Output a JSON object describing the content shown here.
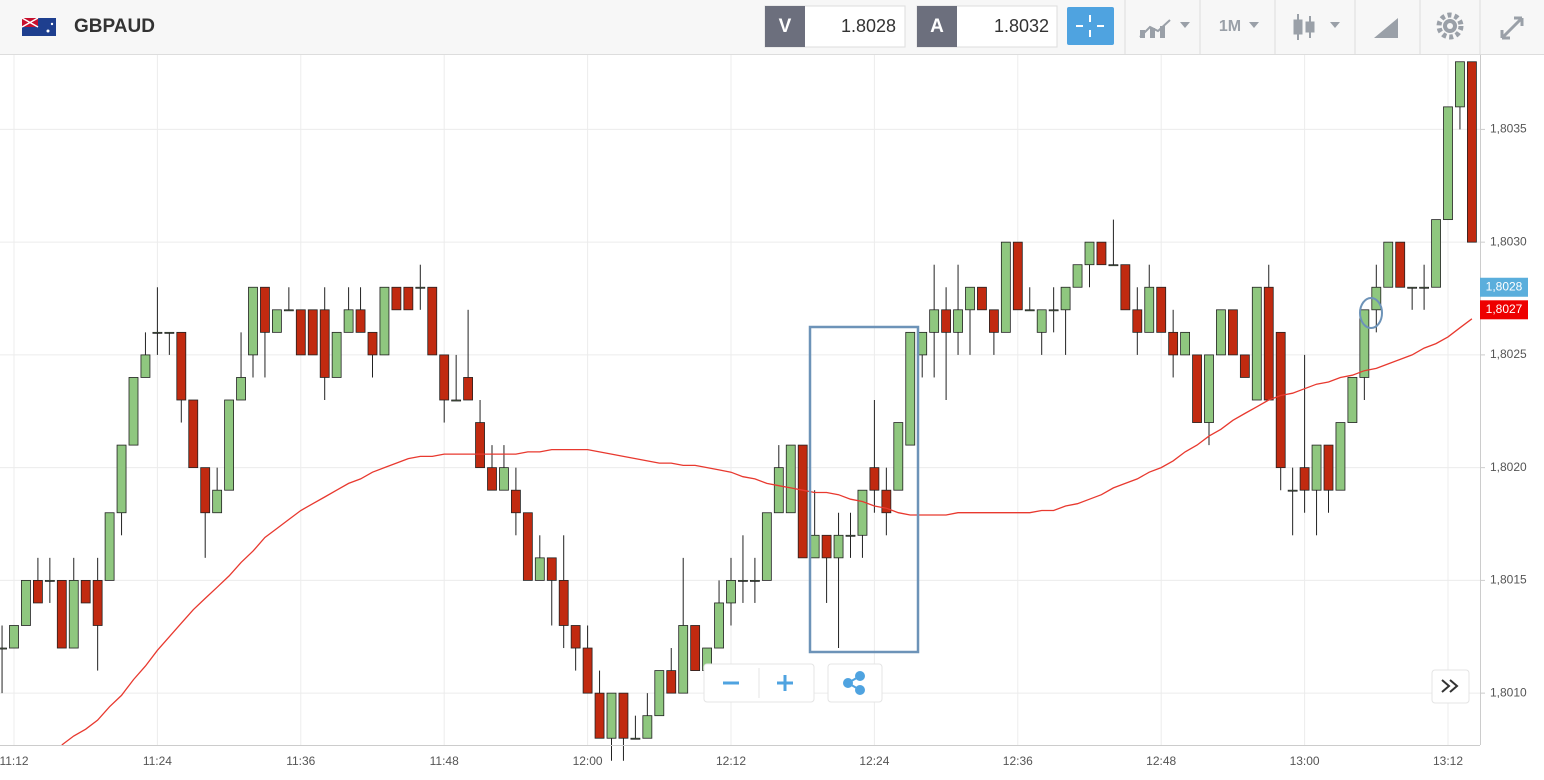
{
  "header": {
    "symbol": "GBPAUD",
    "sell_label": "V",
    "sell": "1.8028",
    "buy_label": "A",
    "buy": "1.8032",
    "timeframe": "1M"
  },
  "chart_data": {
    "type": "candlestick",
    "categories": [
      null,
      "11:12",
      null,
      null,
      null,
      null,
      null,
      null,
      null,
      null,
      null,
      null,
      null,
      "11:24",
      null,
      null,
      null,
      null,
      null,
      null,
      null,
      null,
      null,
      null,
      null,
      "11:36",
      null,
      null,
      null,
      null,
      null,
      null,
      null,
      null,
      null,
      null,
      null,
      "11:48",
      null,
      null,
      null,
      null,
      null,
      null,
      null,
      null,
      null,
      null,
      null,
      "12:00",
      null,
      null,
      null,
      null,
      null,
      null,
      null,
      null,
      null,
      null,
      null,
      "12:12",
      null,
      null,
      null,
      null,
      null,
      null,
      null,
      null,
      null,
      null,
      null,
      "12:24",
      null,
      null,
      null,
      null,
      null,
      null,
      null,
      null,
      null,
      null,
      null,
      "12:36",
      null,
      null,
      null,
      null,
      null,
      null,
      null,
      null,
      null,
      null,
      null,
      "12:48",
      null,
      null,
      null,
      null,
      null,
      null,
      null,
      null,
      null,
      null,
      null,
      "13:00",
      null,
      null,
      null,
      null,
      null,
      null,
      null,
      null,
      null,
      null,
      null,
      "13:12",
      null,
      null
    ],
    "open": [
      1.8012,
      1.8012,
      1.8013,
      1.8015,
      1.8015,
      1.8015,
      1.8012,
      1.8015,
      1.8015,
      1.8015,
      1.8018,
      1.8021,
      1.8024,
      1.8026,
      1.8026,
      1.8026,
      1.8023,
      1.802,
      1.8018,
      1.8019,
      1.8023,
      1.8025,
      1.8028,
      1.8026,
      1.8027,
      1.8027,
      1.8027,
      1.8027,
      1.8024,
      1.8026,
      1.8027,
      1.8026,
      1.8025,
      1.8028,
      1.8028,
      1.8028,
      1.8028,
      1.8025,
      1.8023,
      1.8024,
      1.8022,
      1.802,
      1.8019,
      1.8019,
      1.8018,
      1.8015,
      1.8016,
      1.8015,
      1.8013,
      1.8012,
      1.801,
      1.8008,
      1.801,
      1.8008,
      1.8008,
      1.8009,
      1.8011,
      1.801,
      1.8013,
      1.8011,
      1.8012,
      1.8014,
      1.8015,
      1.8015,
      1.8015,
      1.8018,
      1.8018,
      1.8021,
      1.8016,
      1.8017,
      1.8016,
      1.8017,
      1.8017,
      1.802,
      1.8019,
      1.8019,
      1.8021,
      1.8025,
      1.8026,
      1.8027,
      1.8026,
      1.8027,
      1.8028,
      1.8027,
      1.8026,
      1.803,
      1.8027,
      1.8026,
      1.8027,
      1.8027,
      1.8028,
      1.8029,
      1.803,
      1.8029,
      1.8029,
      1.8027,
      1.8026,
      1.8028,
      1.8026,
      1.8025,
      1.8025,
      1.8022,
      1.8025,
      1.8027,
      1.8025,
      1.8023,
      1.8028,
      1.8026,
      1.8019,
      1.802,
      1.8019,
      1.8021,
      1.8019,
      1.8022,
      1.8024,
      1.8027,
      1.8028,
      1.803,
      1.8028,
      1.8028,
      1.8028,
      1.8031,
      1.8036,
      1.8038
    ],
    "high": [
      1.8013,
      1.8013,
      1.8015,
      1.8016,
      1.8016,
      1.8015,
      1.8016,
      1.8015,
      1.8016,
      1.8018,
      1.8021,
      1.8024,
      1.8026,
      1.8028,
      1.8026,
      1.8026,
      1.8023,
      1.802,
      1.802,
      1.8023,
      1.8026,
      1.8028,
      1.8028,
      1.8027,
      1.8028,
      1.8027,
      1.8027,
      1.8028,
      1.8026,
      1.8028,
      1.8028,
      1.8026,
      1.8028,
      1.8028,
      1.8028,
      1.8029,
      1.8028,
      1.8025,
      1.8025,
      1.8027,
      1.8023,
      1.8021,
      1.8021,
      1.802,
      1.8018,
      1.8017,
      1.8016,
      1.8017,
      1.8013,
      1.8013,
      1.8011,
      1.801,
      1.801,
      1.8009,
      1.801,
      1.8011,
      1.8012,
      1.8016,
      1.8013,
      1.8012,
      1.8015,
      1.8016,
      1.8017,
      1.8016,
      1.8018,
      1.8021,
      1.8021,
      1.8021,
      1.8019,
      1.8017,
      1.8018,
      1.8018,
      1.8019,
      1.8023,
      1.802,
      1.8022,
      1.8026,
      1.8026,
      1.8029,
      1.8028,
      1.8029,
      1.8028,
      1.8028,
      1.8027,
      1.803,
      1.803,
      1.8028,
      1.8027,
      1.8028,
      1.8028,
      1.8029,
      1.803,
      1.803,
      1.8031,
      1.8029,
      1.8028,
      1.8029,
      1.8028,
      1.8027,
      1.8026,
      1.8025,
      1.8025,
      1.8027,
      1.8027,
      1.8025,
      1.8028,
      1.8029,
      1.8026,
      1.802,
      1.8025,
      1.8021,
      1.8021,
      1.8022,
      1.8024,
      1.8027,
      1.8029,
      1.803,
      1.803,
      1.8028,
      1.8029,
      1.8031,
      1.8036,
      1.8038,
      1.8038
    ],
    "low": [
      1.801,
      1.8012,
      1.8013,
      1.8014,
      1.8014,
      1.8012,
      1.8012,
      1.8014,
      1.8011,
      1.8015,
      1.8017,
      1.8021,
      1.8024,
      1.8025,
      1.8025,
      1.8022,
      1.802,
      1.8016,
      1.8018,
      1.8019,
      1.8023,
      1.8024,
      1.8024,
      1.8026,
      1.8027,
      1.8025,
      1.8025,
      1.8023,
      1.8024,
      1.8026,
      1.8026,
      1.8024,
      1.8025,
      1.8027,
      1.8027,
      1.8027,
      1.8025,
      1.8022,
      1.8023,
      1.8023,
      1.802,
      1.8019,
      1.8019,
      1.8017,
      1.8015,
      1.8015,
      1.8013,
      1.8012,
      1.8011,
      1.801,
      1.8008,
      1.8007,
      1.8007,
      1.8008,
      1.8008,
      1.8009,
      1.801,
      1.801,
      1.8011,
      1.8011,
      1.8012,
      1.8013,
      1.8014,
      1.8014,
      1.8015,
      1.8018,
      1.8018,
      1.8016,
      1.8016,
      1.8014,
      1.8012,
      1.8016,
      1.8016,
      1.8018,
      1.8017,
      1.8019,
      1.8021,
      1.8024,
      1.8024,
      1.8023,
      1.8025,
      1.8025,
      1.8027,
      1.8025,
      1.8026,
      1.8027,
      1.8027,
      1.8025,
      1.8026,
      1.8025,
      1.8028,
      1.8028,
      1.8029,
      1.8029,
      1.8027,
      1.8025,
      1.8026,
      1.8026,
      1.8024,
      1.8025,
      1.8022,
      1.8021,
      1.8025,
      1.8025,
      1.8024,
      1.8023,
      1.8023,
      1.8019,
      1.8017,
      1.8018,
      1.8017,
      1.8018,
      1.8019,
      1.8022,
      1.8023,
      1.8026,
      1.8028,
      1.8028,
      1.8027,
      1.8027,
      1.8028,
      1.8031,
      1.8035,
      1.803
    ],
    "close": [
      1.8012,
      1.8013,
      1.8015,
      1.8014,
      1.8015,
      1.8012,
      1.8015,
      1.8014,
      1.8013,
      1.8018,
      1.8021,
      1.8024,
      1.8025,
      1.8026,
      1.8026,
      1.8023,
      1.802,
      1.8018,
      1.8019,
      1.8023,
      1.8024,
      1.8028,
      1.8026,
      1.8027,
      1.8027,
      1.8025,
      1.8025,
      1.8024,
      1.8026,
      1.8027,
      1.8026,
      1.8025,
      1.8028,
      1.8027,
      1.8027,
      1.8028,
      1.8025,
      1.8023,
      1.8023,
      1.8023,
      1.802,
      1.8019,
      1.802,
      1.8018,
      1.8015,
      1.8016,
      1.8015,
      1.8013,
      1.8012,
      1.801,
      1.8008,
      1.801,
      1.8008,
      1.8008,
      1.8009,
      1.8011,
      1.801,
      1.8013,
      1.8011,
      1.8012,
      1.8014,
      1.8015,
      1.8015,
      1.8015,
      1.8018,
      1.802,
      1.8021,
      1.8016,
      1.8017,
      1.8016,
      1.8017,
      1.8017,
      1.8019,
      1.8019,
      1.8018,
      1.8022,
      1.8026,
      1.8026,
      1.8027,
      1.8026,
      1.8027,
      1.8028,
      1.8027,
      1.8026,
      1.803,
      1.8027,
      1.8027,
      1.8027,
      1.8027,
      1.8028,
      1.8029,
      1.803,
      1.8029,
      1.8029,
      1.8027,
      1.8026,
      1.8028,
      1.8026,
      1.8025,
      1.8026,
      1.8022,
      1.8025,
      1.8027,
      1.8025,
      1.8024,
      1.8028,
      1.8023,
      1.802,
      1.8019,
      1.8019,
      1.8021,
      1.8019,
      1.8022,
      1.8024,
      1.8027,
      1.8028,
      1.803,
      1.8028,
      1.8028,
      1.8028,
      1.8031,
      1.8036,
      1.8038,
      1.803
    ],
    "up_color": "#8fc77f",
    "down_color": "#c12a10",
    "moving_average": {
      "color": "#e8392f",
      "values": [
        null,
        null,
        null,
        null,
        null,
        1.80077,
        1.80081,
        1.80084,
        1.80088,
        1.80094,
        1.80099,
        1.80106,
        1.80112,
        1.80119,
        1.80125,
        1.80131,
        1.80137,
        1.80142,
        1.80147,
        1.80152,
        1.80158,
        1.80163,
        1.80169,
        1.80173,
        1.80177,
        1.80181,
        1.80184,
        1.80187,
        1.8019,
        1.80193,
        1.80195,
        1.80198,
        1.802,
        1.80202,
        1.80204,
        1.80205,
        1.80205,
        1.80206,
        1.80206,
        1.80206,
        1.80206,
        1.80206,
        1.80206,
        1.80206,
        1.80207,
        1.80207,
        1.80208,
        1.80208,
        1.80208,
        1.80208,
        1.80207,
        1.80206,
        1.80205,
        1.80204,
        1.80203,
        1.80202,
        1.80202,
        1.80201,
        1.80201,
        1.802,
        1.80199,
        1.80198,
        1.80196,
        1.80195,
        1.80193,
        1.80192,
        1.80191,
        1.8019,
        1.80189,
        1.80189,
        1.80188,
        1.80186,
        1.80185,
        1.80183,
        1.80182,
        1.8018,
        1.80179,
        1.80179,
        1.80179,
        1.80179,
        1.8018,
        1.8018,
        1.8018,
        1.8018,
        1.8018,
        1.8018,
        1.8018,
        1.80181,
        1.80181,
        1.80183,
        1.80184,
        1.80186,
        1.80188,
        1.80191,
        1.80193,
        1.80195,
        1.80198,
        1.802,
        1.80203,
        1.80207,
        1.8021,
        1.80214,
        1.80217,
        1.80221,
        1.80224,
        1.80227,
        1.8023,
        1.80232,
        1.80233,
        1.80235,
        1.80237,
        1.80238,
        1.8024,
        1.80241,
        1.80243,
        1.80244,
        1.80246,
        1.80248,
        1.8025,
        1.80253,
        1.80255,
        1.80258,
        1.80262,
        1.80266
      ]
    },
    "ylim": [
      1.80077,
      1.80383
    ],
    "yticks": [
      {
        "value": 1.801,
        "label": "1,8010"
      },
      {
        "value": 1.8015,
        "label": "1,8015"
      },
      {
        "value": 1.802,
        "label": "1,8020"
      },
      {
        "value": 1.8025,
        "label": "1,8025"
      },
      {
        "value": 1.803,
        "label": "1,8030"
      },
      {
        "value": 1.8035,
        "label": "1,8035"
      }
    ],
    "price_labels": [
      {
        "value": 1.8028,
        "label": "1,8028",
        "color": "#5aaedc"
      },
      {
        "value": 1.8027,
        "label": "1,8027",
        "color": "#ee0000"
      }
    ],
    "grid": true
  }
}
